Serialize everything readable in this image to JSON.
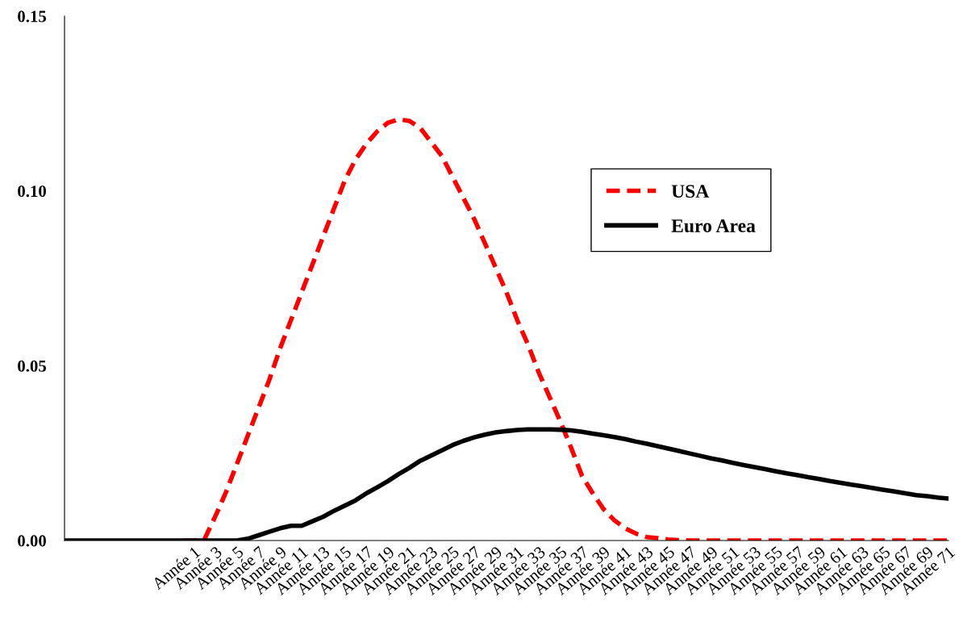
{
  "chart_data": {
    "type": "line",
    "categories": [
      null,
      null,
      null,
      null,
      null,
      null,
      null,
      null,
      null,
      null,
      null,
      null,
      "Année 1",
      null,
      "Année 3",
      null,
      "Année 5",
      null,
      "Année 7",
      null,
      "Année 9",
      null,
      "Année 11",
      null,
      "Année 13",
      null,
      "Année 15",
      null,
      "Année 17",
      null,
      "Année 19",
      null,
      "Année 21",
      null,
      "Année 23",
      null,
      "Année 25",
      null,
      "Année 27",
      null,
      "Année 29",
      null,
      "Année 31",
      null,
      "Année 33",
      null,
      "Année 35",
      null,
      "Année 37",
      null,
      "Année 39",
      null,
      "Année 41",
      null,
      "Année 43",
      null,
      "Année 45",
      null,
      "Année 47",
      null,
      "Année 49",
      null,
      "Année 51",
      null,
      "Année 53",
      null,
      "Année 55",
      null,
      "Année 57",
      null,
      "Année 59",
      null,
      "Année 61",
      null,
      "Année 63",
      null,
      "Année 65",
      null,
      "Année 67",
      null,
      "Année 69",
      null,
      "Année 71"
    ],
    "series": [
      {
        "name": "USA",
        "color": "#ff0000",
        "line_style": "dashed",
        "values": [
          null,
          null,
          null,
          null,
          null,
          null,
          null,
          null,
          null,
          null,
          null,
          0,
          0,
          0.0005,
          0.007,
          0.014,
          0.022,
          0.03,
          0.038,
          0.046,
          0.055,
          0.063,
          0.071,
          0.079,
          0.087,
          0.095,
          0.103,
          0.109,
          0.1135,
          0.117,
          0.1195,
          0.1205,
          0.12,
          0.118,
          0.114,
          0.11,
          0.104,
          0.098,
          0.092,
          0.085,
          0.078,
          0.071,
          0.063,
          0.056,
          0.048,
          0.041,
          0.034,
          0.0265,
          0.0185,
          0.0135,
          0.009,
          0.0058,
          0.0035,
          0.002,
          0.001,
          0.0007,
          0.0003,
          0.0001,
          0,
          0,
          0,
          0,
          0,
          0,
          0,
          0,
          0,
          0,
          0,
          0,
          0,
          0,
          0,
          0,
          0,
          0,
          0,
          0,
          0,
          0,
          0,
          0,
          0
        ]
      },
      {
        "name": "Euro Area",
        "color": "#000000",
        "line_style": "solid",
        "values": [
          0,
          0,
          0,
          0,
          0,
          0,
          0,
          0,
          0,
          0,
          0,
          0,
          0,
          0,
          0,
          0,
          0,
          0.0005,
          0.0015,
          0.0025,
          0.0035,
          0.0042,
          0.0042,
          0.0055,
          0.0068,
          0.0085,
          0.01,
          0.0115,
          0.0135,
          0.0152,
          0.017,
          0.019,
          0.0208,
          0.0228,
          0.0243,
          0.0258,
          0.0273,
          0.0285,
          0.0295,
          0.0303,
          0.0309,
          0.0313,
          0.0316,
          0.0318,
          0.0318,
          0.0318,
          0.0317,
          0.0315,
          0.0311,
          0.0306,
          0.0301,
          0.0296,
          0.029,
          0.0283,
          0.0277,
          0.027,
          0.0263,
          0.0256,
          0.0249,
          0.0242,
          0.0235,
          0.0229,
          0.0222,
          0.0216,
          0.021,
          0.0204,
          0.0198,
          0.0192,
          0.0187,
          0.0181,
          0.0176,
          0.017,
          0.0165,
          0.016,
          0.0155,
          0.015,
          0.0145,
          0.014,
          0.0135,
          0.013,
          0.0127,
          0.0123,
          0.012
        ]
      }
    ],
    "ylim": [
      0,
      0.15
    ],
    "yticks": [
      {
        "value": 0,
        "label": "0.00"
      },
      {
        "value": 0.05,
        "label": "0.05"
      },
      {
        "value": 0.1,
        "label": "0.10"
      },
      {
        "value": 0.15,
        "label": "0.15"
      }
    ],
    "grid": false,
    "legend": "right",
    "marker": "none"
  }
}
